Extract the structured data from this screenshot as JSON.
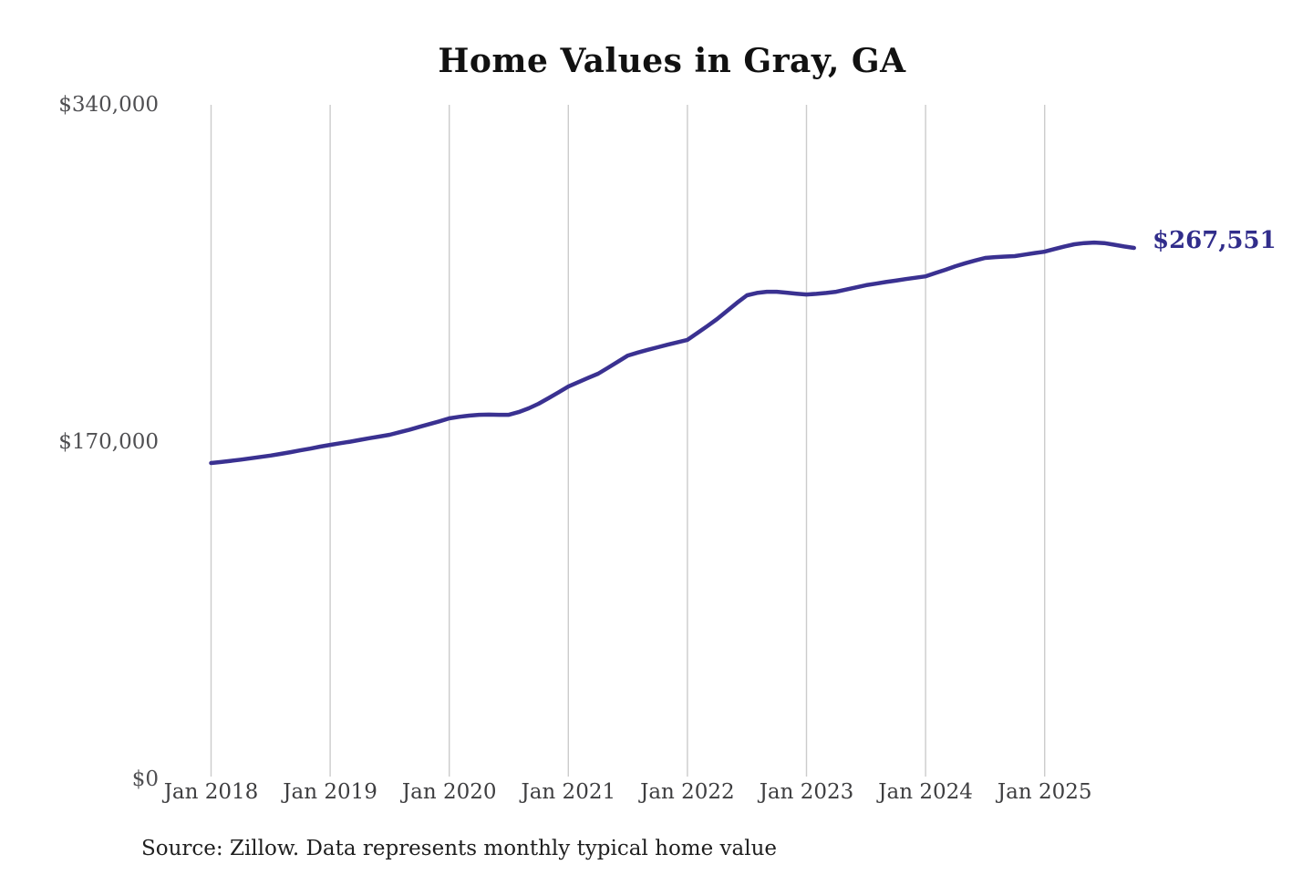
{
  "page": {
    "title": "Home Values in Gray, GA",
    "end_label": "$267,551",
    "source_note": "Source: Zillow. Data represents monthly typical home value",
    "y_ticks": [
      "$340,000",
      "$170,000",
      "$0"
    ],
    "x_ticks": [
      "Jan 2018",
      "Jan 2019",
      "Jan 2020",
      "Jan 2021",
      "Jan 2022",
      "Jan 2023",
      "Jan 2024",
      "Jan 2025"
    ],
    "colors": {
      "line": "#3a3191",
      "end_label": "#312d8b",
      "grid": "#cccccc",
      "title": "#111111",
      "axis_text": "#4a4a4a",
      "background": "#ffffff"
    }
  },
  "chart_data": {
    "type": "line",
    "title": "Home Values in Gray, GA",
    "xlabel": "",
    "ylabel": "",
    "unit": "USD",
    "ylim": [
      0,
      340000
    ],
    "y_tick_values": [
      0,
      170000,
      340000
    ],
    "y_tick_labels": [
      "$0",
      "$170,000",
      "$340,000"
    ],
    "x_tick_labels": [
      "Jan 2018",
      "Jan 2019",
      "Jan 2020",
      "Jan 2021",
      "Jan 2022",
      "Jan 2023",
      "Jan 2024",
      "Jan 2025"
    ],
    "grid": "vertical-only",
    "legend": "none",
    "latest_value": 267551,
    "annotations": [
      {
        "text": "$267,551",
        "position": "line-end"
      }
    ],
    "source": "Source: Zillow. Data represents monthly typical home value",
    "series": [
      {
        "name": "Monthly typical home value",
        "start": "2018-01",
        "end": "2025-10",
        "frequency": "monthly",
        "values": [
          158700,
          159200,
          159800,
          160400,
          161100,
          161800,
          162500,
          163300,
          164200,
          165100,
          166000,
          167000,
          167900,
          168700,
          169500,
          170400,
          171300,
          172100,
          173000,
          174300,
          175600,
          177000,
          178400,
          179800,
          181300,
          182100,
          182700,
          183100,
          183200,
          183100,
          183100,
          184500,
          186400,
          188700,
          191500,
          194400,
          197400,
          199600,
          201800,
          203900,
          206900,
          210000,
          213100,
          214600,
          216000,
          217300,
          218600,
          219800,
          221000,
          224500,
          228000,
          231600,
          235700,
          239800,
          243600,
          244800,
          245400,
          245400,
          244900,
          244400,
          244000,
          244300,
          244800,
          245400,
          246500,
          247600,
          248700,
          249500,
          250300,
          251000,
          251800,
          252500,
          253200,
          254900,
          256500,
          258300,
          259800,
          261200,
          262500,
          262900,
          263200,
          263400,
          264200,
          265000,
          265700,
          267000,
          268300,
          269400,
          270000,
          270300,
          270000,
          269200,
          268300,
          267551
        ]
      }
    ]
  }
}
